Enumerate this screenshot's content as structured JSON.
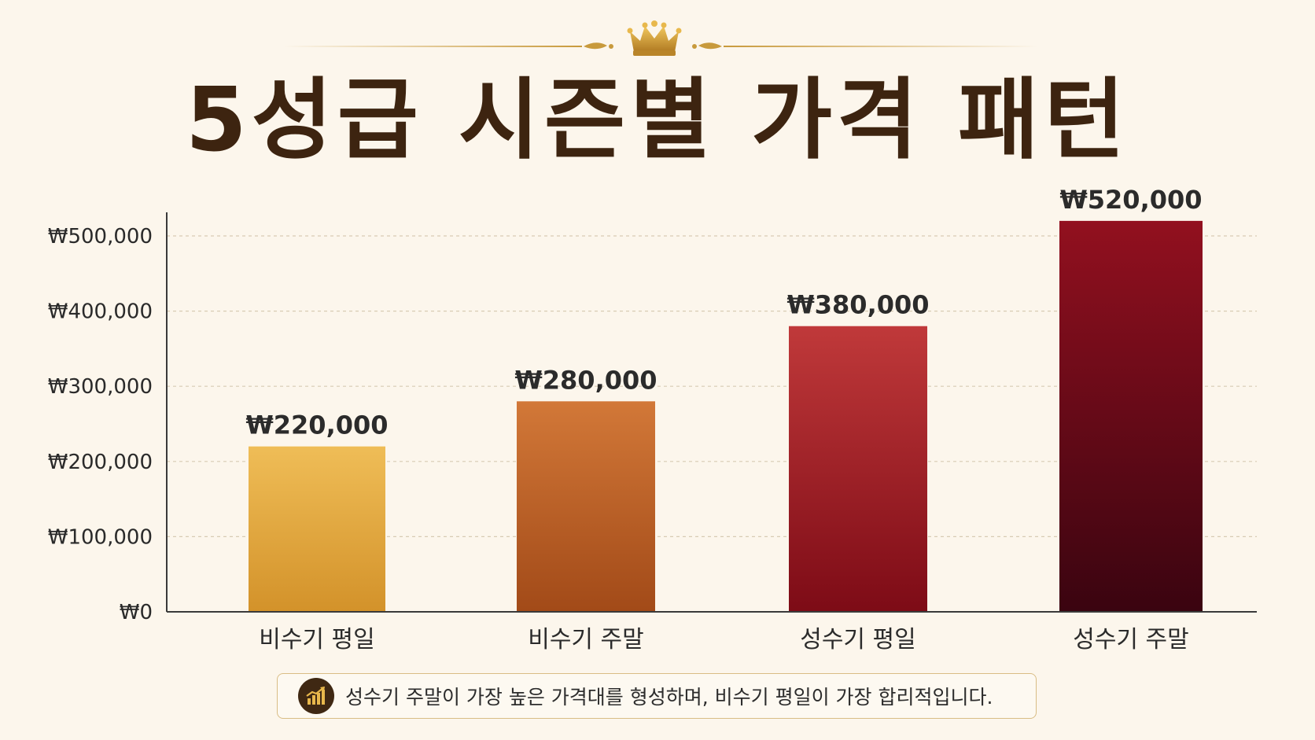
{
  "title": "5성급 시즌별 가격 패턴",
  "colors": {
    "background": "#fcf6ec",
    "title": "#3d2410",
    "gold": "#c89a3c",
    "axis": "#3a3a3a",
    "grid": "#d8cbb4",
    "bar_gradients": [
      [
        "#efbd57",
        "#d3922a"
      ],
      [
        "#d27838",
        "#a24a18"
      ],
      [
        "#c0393a",
        "#7d0b16"
      ],
      [
        "#92101f",
        "#3a0410"
      ]
    ]
  },
  "icons": {
    "crown": "crown-icon",
    "note": "rising-bar-chart-icon"
  },
  "chart_data": {
    "type": "bar",
    "categories": [
      "비수기 평일",
      "비수기 주말",
      "성수기 평일",
      "성수기 주말"
    ],
    "values": [
      220000,
      280000,
      380000,
      520000
    ],
    "value_labels": [
      "₩220,000",
      "₩280,000",
      "₩380,000",
      "₩520,000"
    ],
    "y_ticks": [
      0,
      100000,
      200000,
      300000,
      400000,
      500000
    ],
    "y_tick_labels": [
      "₩0",
      "₩100,000",
      "₩200,000",
      "₩300,000",
      "₩400,000",
      "₩500,000"
    ],
    "ylim": [
      0,
      500000
    ],
    "grid": true,
    "xlabel": "",
    "ylabel": ""
  },
  "note": {
    "text": "성수기 주말이 가장 높은 가격대를 형성하며, 비수기 평일이 가장 합리적입니다."
  }
}
